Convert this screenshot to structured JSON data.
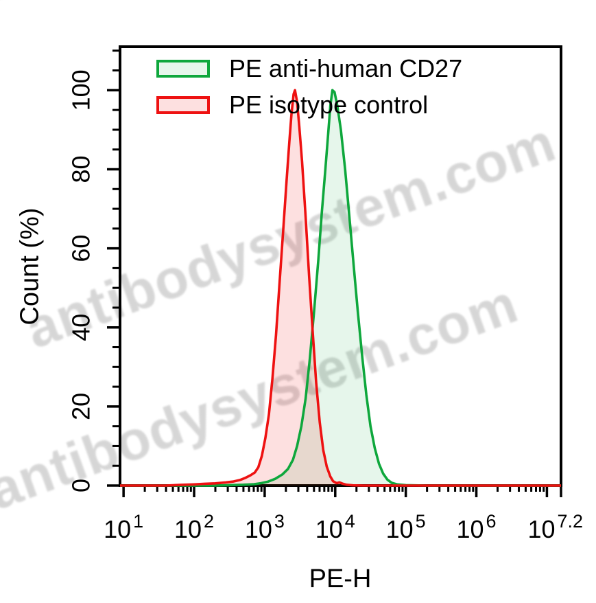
{
  "watermark": {
    "text": "antibodysystem.com",
    "color": "#b2b2b2"
  },
  "chart_data": {
    "type": "area",
    "subtype": "flow-cytometry-histogram",
    "title": "",
    "xlabel": "PE-H",
    "ylabel": "Count (%)",
    "x_scale": "log10",
    "xlim_log": [
      0.95,
      7.2
    ],
    "ylim": [
      0,
      111
    ],
    "grid": false,
    "legend_position": "top-left-inside",
    "x_tick_base": "10",
    "x_major_tick_logs": [
      1,
      2,
      3,
      4,
      5,
      6,
      7,
      7.2
    ],
    "x_tick_labels": [
      {
        "exp": "1",
        "log": 1
      },
      {
        "exp": "2",
        "log": 2
      },
      {
        "exp": "3",
        "log": 3
      },
      {
        "exp": "4",
        "log": 4
      },
      {
        "exp": "5",
        "log": 5
      },
      {
        "exp": "6",
        "log": 6
      },
      {
        "exp": "7.2",
        "log": 7.12
      }
    ],
    "y_major_ticks": [
      {
        "value": 0,
        "label": "0"
      },
      {
        "value": 20,
        "label": "20"
      },
      {
        "value": 40,
        "label": "40"
      },
      {
        "value": 60,
        "label": "60"
      },
      {
        "value": 80,
        "label": "80"
      },
      {
        "value": 100,
        "label": "100"
      }
    ],
    "y_minor_step": 5,
    "series": [
      {
        "name": "PE anti-human CD27",
        "color": "#0ea73c",
        "fill": "rgba(14,167,60,0.10)",
        "peak": {
          "x_log": 3.96,
          "x_value": 9100,
          "percent": 100
        },
        "points": [
          [
            0.95,
            0
          ],
          [
            2.3,
            0
          ],
          [
            2.5,
            0.1
          ],
          [
            2.7,
            0.2
          ],
          [
            2.85,
            0.35
          ],
          [
            2.95,
            0.6
          ],
          [
            3.05,
            1.0
          ],
          [
            3.15,
            1.7
          ],
          [
            3.25,
            2.8
          ],
          [
            3.33,
            4.2
          ],
          [
            3.4,
            6.5
          ],
          [
            3.46,
            10
          ],
          [
            3.52,
            15
          ],
          [
            3.58,
            22
          ],
          [
            3.64,
            32
          ],
          [
            3.7,
            44
          ],
          [
            3.76,
            57
          ],
          [
            3.81,
            69
          ],
          [
            3.86,
            80
          ],
          [
            3.9,
            89
          ],
          [
            3.93,
            96
          ],
          [
            3.96,
            100
          ],
          [
            3.99,
            99.5
          ],
          [
            4.03,
            96
          ],
          [
            4.08,
            90
          ],
          [
            4.14,
            80
          ],
          [
            4.2,
            68
          ],
          [
            4.26,
            56
          ],
          [
            4.32,
            44
          ],
          [
            4.38,
            33
          ],
          [
            4.44,
            23
          ],
          [
            4.5,
            15
          ],
          [
            4.56,
            9.5
          ],
          [
            4.62,
            5.5
          ],
          [
            4.68,
            3.0
          ],
          [
            4.74,
            1.5
          ],
          [
            4.8,
            0.7
          ],
          [
            4.88,
            0.3
          ],
          [
            5.0,
            0.1
          ],
          [
            5.3,
            0
          ],
          [
            7.2,
            0
          ]
        ]
      },
      {
        "name": "PE isotype control",
        "color": "#ee1111",
        "fill": "rgba(238,17,17,0.13)",
        "peak": {
          "x_log": 3.43,
          "x_value": 2700,
          "percent": 100
        },
        "points": [
          [
            0.95,
            0
          ],
          [
            1.6,
            0
          ],
          [
            1.8,
            0.15
          ],
          [
            2.0,
            0.3
          ],
          [
            2.15,
            0.45
          ],
          [
            2.3,
            0.55
          ],
          [
            2.45,
            0.8
          ],
          [
            2.55,
            1.0
          ],
          [
            2.65,
            1.4
          ],
          [
            2.72,
            1.9
          ],
          [
            2.8,
            2.6
          ],
          [
            2.86,
            3.3
          ],
          [
            2.91,
            4.6
          ],
          [
            2.96,
            7.5
          ],
          [
            3.01,
            12
          ],
          [
            3.06,
            18
          ],
          [
            3.11,
            27
          ],
          [
            3.16,
            38
          ],
          [
            3.21,
            51
          ],
          [
            3.26,
            64
          ],
          [
            3.31,
            77
          ],
          [
            3.35,
            87
          ],
          [
            3.38,
            94
          ],
          [
            3.41,
            99
          ],
          [
            3.43,
            100
          ],
          [
            3.46,
            97
          ],
          [
            3.49,
            91
          ],
          [
            3.53,
            82
          ],
          [
            3.58,
            68
          ],
          [
            3.63,
            53
          ],
          [
            3.68,
            39
          ],
          [
            3.73,
            26
          ],
          [
            3.78,
            16
          ],
          [
            3.83,
            9
          ],
          [
            3.88,
            4.8
          ],
          [
            3.93,
            2.3
          ],
          [
            3.97,
            1.1
          ],
          [
            4.02,
            0.6
          ],
          [
            4.06,
            0.8
          ],
          [
            4.1,
            0.5
          ],
          [
            4.16,
            0.2
          ],
          [
            4.25,
            0.05
          ],
          [
            4.4,
            0
          ],
          [
            7.2,
            0
          ]
        ]
      }
    ]
  }
}
